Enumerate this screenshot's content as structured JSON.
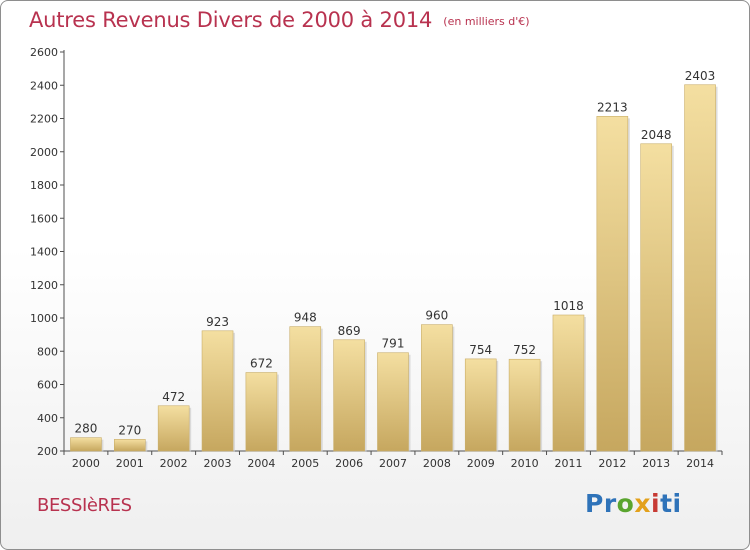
{
  "page": {
    "title": "Autres Revenus Divers de 2000 à 2014",
    "subtitle": "(en milliers d'€)",
    "commune": "BESSIèRES",
    "brand": "Proxiti"
  },
  "colors": {
    "title": "#b8324f",
    "bar_top": "#f4dfa1",
    "bar_bottom": "#c6a75f",
    "bar_shadow": "#cfcfcf",
    "axis": "#4f4f4f"
  },
  "chart_data": {
    "type": "bar",
    "title": "Autres Revenus Divers de 2000 à 2014",
    "subtitle": "(en milliers d'€)",
    "xlabel": "",
    "ylabel": "",
    "categories": [
      "2000",
      "2001",
      "2002",
      "2003",
      "2004",
      "2005",
      "2006",
      "2007",
      "2008",
      "2009",
      "2010",
      "2011",
      "2012",
      "2013",
      "2014"
    ],
    "values": [
      280,
      270,
      472,
      923,
      672,
      948,
      869,
      791,
      960,
      754,
      752,
      1018,
      2213,
      2048,
      2403
    ],
    "ylim": [
      200,
      2600
    ],
    "yticks": [
      "200",
      "400",
      "600",
      "800",
      "1000",
      "1200",
      "1400",
      "1600",
      "1800",
      "2000",
      "2200",
      "2400",
      "2600"
    ],
    "grid": false,
    "legend": "none"
  }
}
